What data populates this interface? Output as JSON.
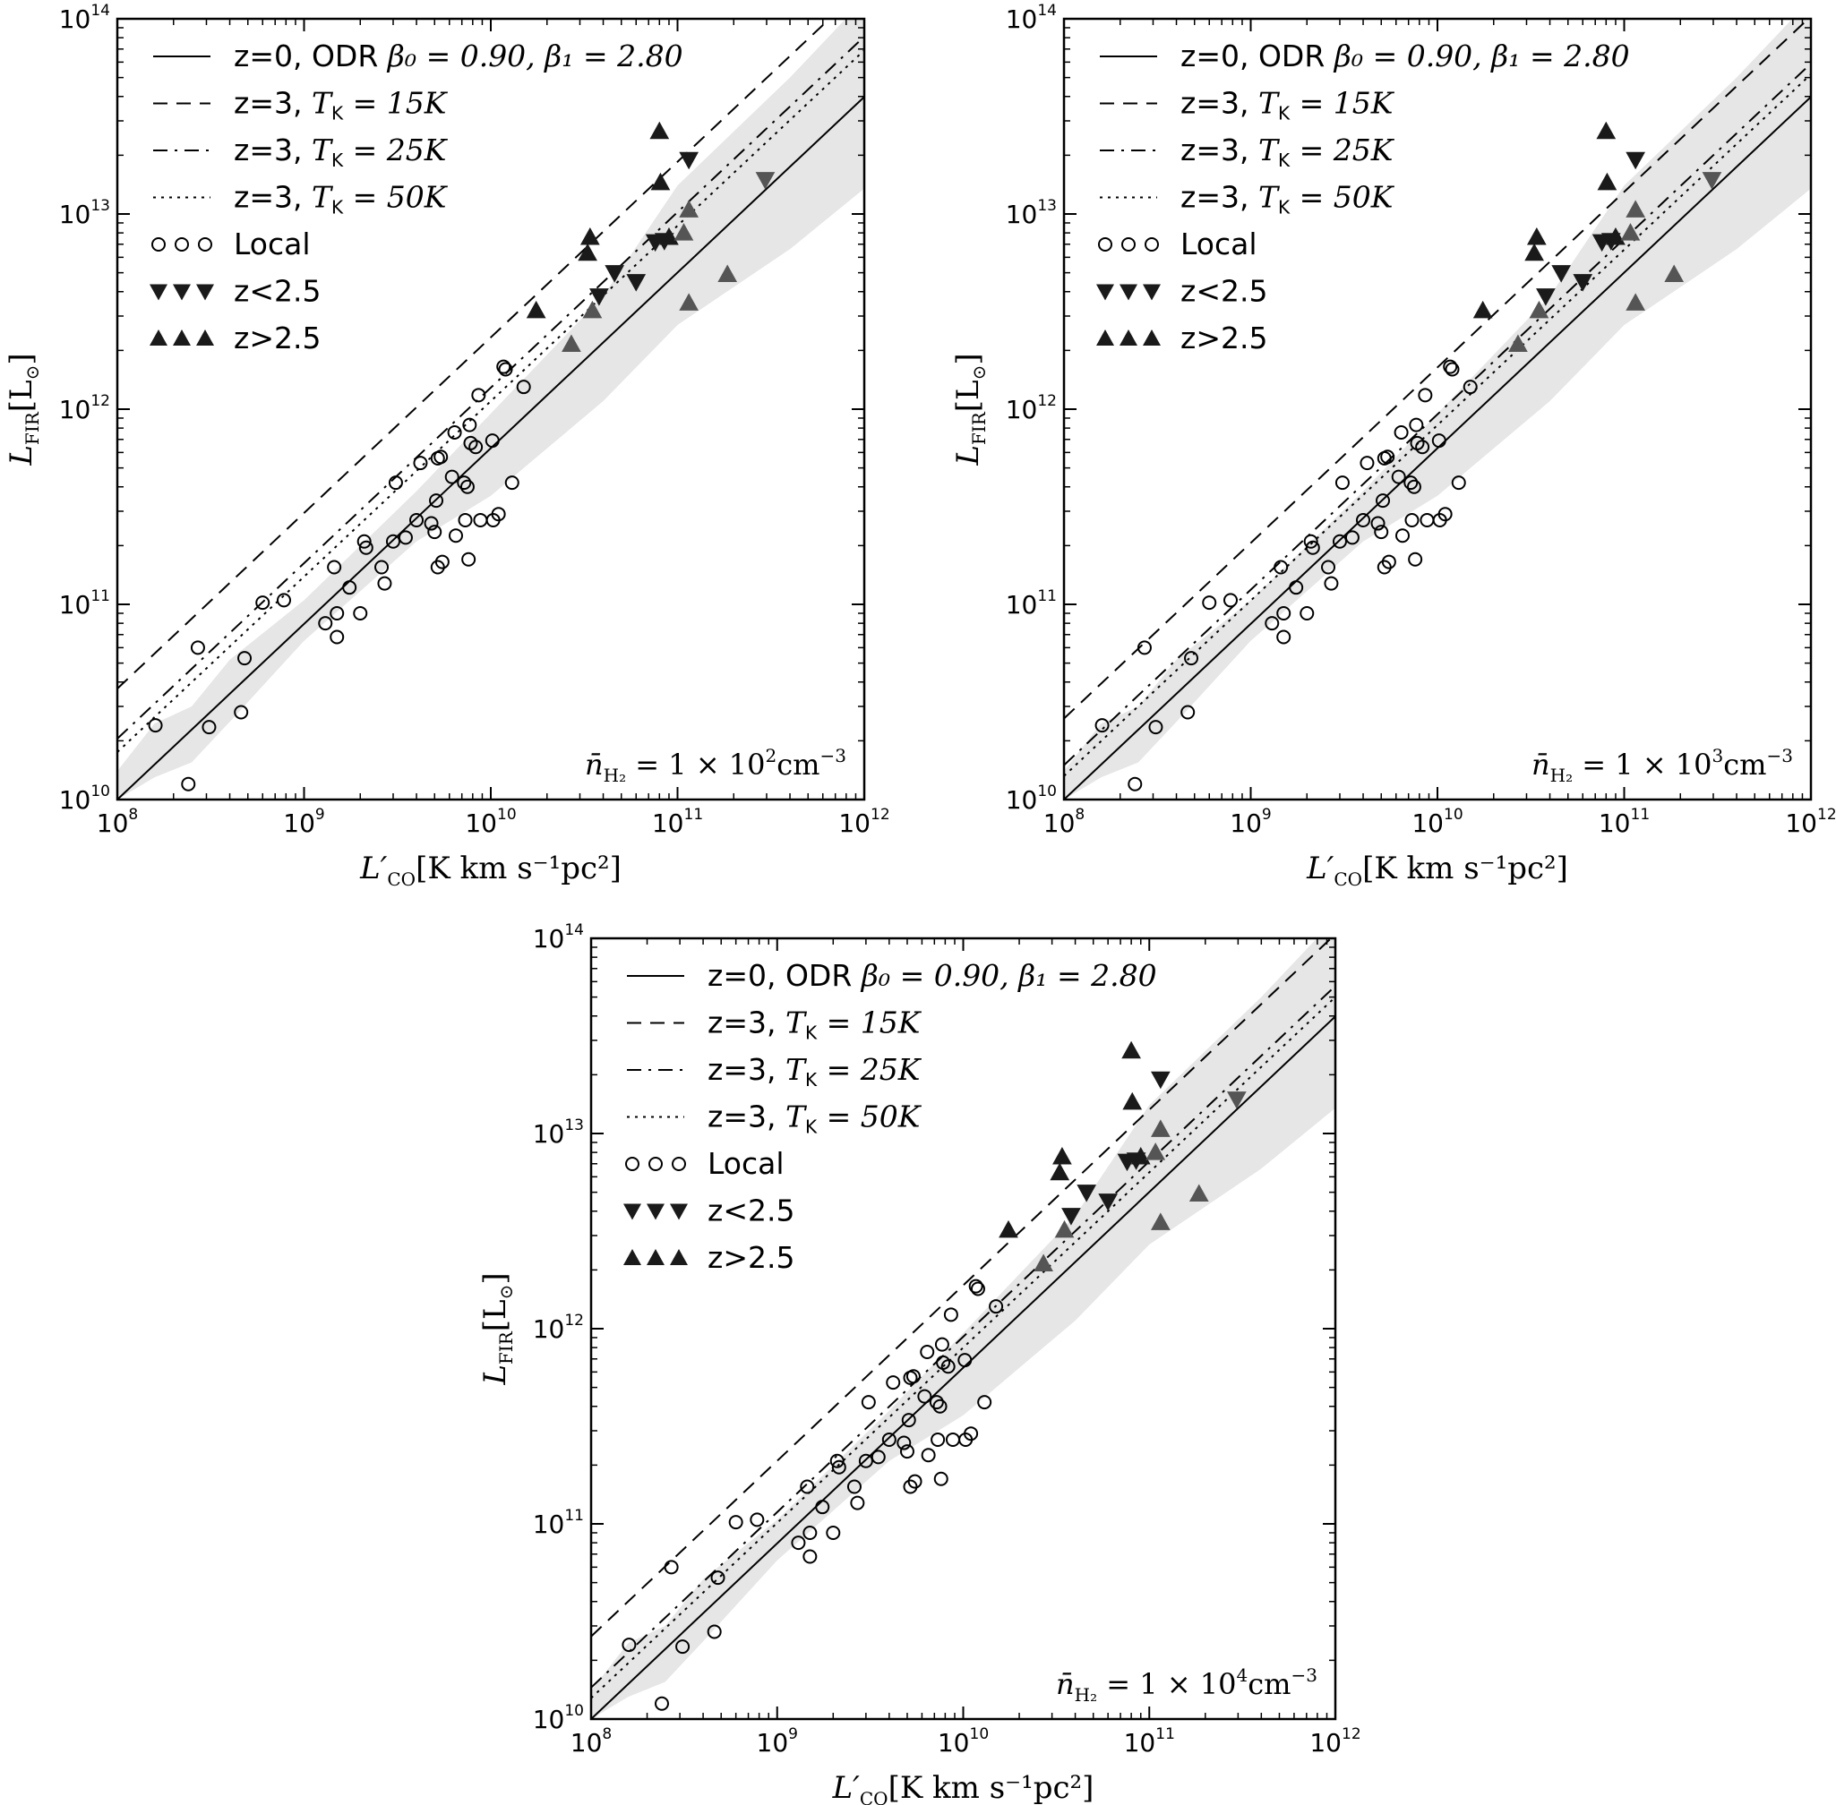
{
  "chart_data": [
    {
      "type": "scatter",
      "x_axis_label": {
        "main": "L",
        "prime": "′",
        "sub": "CO",
        "units": "[K km s⁻¹pc²]"
      },
      "y_axis_label": {
        "main": "L",
        "sub": "FIR",
        "units": "[L",
        "units_sub": "⊙",
        "units_close": "]"
      },
      "x_ticks": [
        {
          "base": "10",
          "exp": "8"
        },
        {
          "base": "10",
          "exp": "9"
        },
        {
          "base": "10",
          "exp": "10"
        },
        {
          "base": "10",
          "exp": "11"
        },
        {
          "base": "10",
          "exp": "12"
        }
      ],
      "y_ticks": [
        {
          "base": "10",
          "exp": "10"
        },
        {
          "base": "10",
          "exp": "11"
        },
        {
          "base": "10",
          "exp": "12"
        },
        {
          "base": "10",
          "exp": "13"
        },
        {
          "base": "10",
          "exp": "14"
        }
      ],
      "x_scale": "log",
      "y_scale": "log",
      "xlim": [
        100000000.0,
        1000000000000.0
      ],
      "ylim": [
        10000000000.0,
        100000000000000.0
      ],
      "grid": false,
      "legend_position": "top-left",
      "legend": [
        {
          "style": "solid",
          "text": "z=0, ODR ",
          "math": "β₀ = 0.90, β₁ = 2.80"
        },
        {
          "style": "dashed",
          "text": "z=3, ",
          "math": "T",
          "math_sub": "K",
          "math_tail": " = 15K"
        },
        {
          "style": "dashdot",
          "text": "z=3, ",
          "math": "T",
          "math_sub": "K",
          "math_tail": " = 25K"
        },
        {
          "style": "dotted",
          "text": "z=3, ",
          "math": "T",
          "math_sub": "K",
          "math_tail": " = 50K"
        },
        {
          "style": "marker-circle",
          "text": "Local"
        },
        {
          "style": "marker-down",
          "text": "z<2.5"
        },
        {
          "style": "marker-up",
          "text": "z>2.5"
        }
      ],
      "annotation": {
        "prefix": "n̄",
        "sub": "H₂",
        "text": " = 1 × 10",
        "exp": "2",
        "unit": "cm",
        "unit_exp": "−3"
      },
      "colors": {
        "shade": "#e6e6e6",
        "marker_dark": "#1a1a1a",
        "marker_grey": "#555555"
      },
      "series": [
        {
          "name": "z=0, ODR β0=0.90, β1=2.80",
          "kind": "line",
          "style": "solid",
          "x": [
            100000000.0,
            1000000000000.0
          ],
          "y": [
            10000000000.0,
            39800000000000.0
          ]
        },
        {
          "name": "z=3, TK=15K",
          "kind": "line",
          "style": "dashed",
          "x": [
            100000000.0,
            1000000000000.0
          ],
          "y": [
            37000000000.0,
            147000000000000.0
          ]
        },
        {
          "name": "z=3, TK=25K",
          "kind": "line",
          "style": "dashdot",
          "x": [
            100000000.0,
            1000000000000.0
          ],
          "y": [
            20500000000.0,
            81000000000000.0
          ]
        },
        {
          "name": "z=3, TK=50K",
          "kind": "line",
          "style": "dotted",
          "x": [
            100000000.0,
            1000000000000.0
          ],
          "y": [
            17500000000.0,
            69000000000000.0
          ]
        },
        {
          "name": "uncertainty band",
          "kind": "band",
          "x": [
            100000000.0,
            158000000.0,
            250000000.0,
            400000000.0,
            1000000000.0,
            4000000000.0,
            10000000000.0,
            40000000000.0,
            100000000000.0,
            400000000000.0,
            1000000000000.0
          ],
          "ylow": [
            10000000000.0,
            13000000000.0,
            15500000000.0,
            25000000000.0,
            65000000000.0,
            210000000000.0,
            360000000000.0,
            1100000000000.0,
            2700000000000.0,
            6600000000000.0,
            13500000000000.0
          ],
          "yhigh": [
            14000000000.0,
            24500000000.0,
            30000000000.0,
            52000000000.0,
            105000000000.0,
            380000000000.0,
            950000000000.0,
            3800000000000.0,
            14000000000000.0,
            50000000000000.0,
            126000000000000.0
          ]
        }
      ]
    },
    {
      "type": "scatter",
      "x_axis_label": {
        "main": "L",
        "prime": "′",
        "sub": "CO",
        "units": "[K km s⁻¹pc²]"
      },
      "y_axis_label": {
        "main": "L",
        "sub": "FIR",
        "units": "[L",
        "units_sub": "⊙",
        "units_close": "]"
      },
      "x_ticks": [
        {
          "base": "10",
          "exp": "8"
        },
        {
          "base": "10",
          "exp": "9"
        },
        {
          "base": "10",
          "exp": "10"
        },
        {
          "base": "10",
          "exp": "11"
        },
        {
          "base": "10",
          "exp": "12"
        }
      ],
      "y_ticks": [
        {
          "base": "10",
          "exp": "10"
        },
        {
          "base": "10",
          "exp": "11"
        },
        {
          "base": "10",
          "exp": "12"
        },
        {
          "base": "10",
          "exp": "13"
        },
        {
          "base": "10",
          "exp": "14"
        }
      ],
      "x_scale": "log",
      "y_scale": "log",
      "xlim": [
        100000000.0,
        1000000000000.0
      ],
      "ylim": [
        10000000000.0,
        100000000000000.0
      ],
      "grid": false,
      "legend_position": "top-left",
      "legend": [
        {
          "style": "solid",
          "text": "z=0, ODR ",
          "math": "β₀ = 0.90, β₁ = 2.80"
        },
        {
          "style": "dashed",
          "text": "z=3, ",
          "math": "T",
          "math_sub": "K",
          "math_tail": " = 15K"
        },
        {
          "style": "dashdot",
          "text": "z=3, ",
          "math": "T",
          "math_sub": "K",
          "math_tail": " = 25K"
        },
        {
          "style": "dotted",
          "text": "z=3, ",
          "math": "T",
          "math_sub": "K",
          "math_tail": " = 50K"
        },
        {
          "style": "marker-circle",
          "text": "Local"
        },
        {
          "style": "marker-down",
          "text": "z<2.5"
        },
        {
          "style": "marker-up",
          "text": "z>2.5"
        }
      ],
      "annotation": {
        "prefix": "n̄",
        "sub": "H₂",
        "text": " = 1 × 10",
        "exp": "3",
        "unit": "cm",
        "unit_exp": "−3"
      },
      "colors": {
        "shade": "#e6e6e6",
        "marker_dark": "#1a1a1a",
        "marker_grey": "#555555"
      },
      "series": [
        {
          "name": "z=0, ODR β0=0.90, β1=2.80",
          "kind": "line",
          "style": "solid",
          "x": [
            100000000.0,
            1000000000000.0
          ],
          "y": [
            10000000000.0,
            39800000000000.0
          ]
        },
        {
          "name": "z=3, TK=15K",
          "kind": "line",
          "style": "dashed",
          "x": [
            100000000.0,
            1000000000000.0
          ],
          "y": [
            26000000000.0,
            103000000000000.0
          ]
        },
        {
          "name": "z=3, TK=25K",
          "kind": "line",
          "style": "dashdot",
          "x": [
            100000000.0,
            1000000000000.0
          ],
          "y": [
            15000000000.0,
            59000000000000.0
          ]
        },
        {
          "name": "z=3, TK=50K",
          "kind": "line",
          "style": "dotted",
          "x": [
            100000000.0,
            1000000000000.0
          ],
          "y": [
            13200000000.0,
            52000000000000.0
          ]
        },
        {
          "name": "uncertainty band",
          "kind": "band",
          "x": [
            100000000.0,
            158000000.0,
            250000000.0,
            400000000.0,
            1000000000.0,
            4000000000.0,
            10000000000.0,
            40000000000.0,
            100000000000.0,
            400000000000.0,
            1000000000000.0
          ],
          "ylow": [
            10000000000.0,
            13000000000.0,
            15500000000.0,
            25000000000.0,
            65000000000.0,
            210000000000.0,
            360000000000.0,
            1100000000000.0,
            2700000000000.0,
            6600000000000.0,
            13500000000000.0
          ],
          "yhigh": [
            14000000000.0,
            24500000000.0,
            30000000000.0,
            52000000000.0,
            105000000000.0,
            380000000000.0,
            950000000000.0,
            3800000000000.0,
            14000000000000.0,
            50000000000000.0,
            126000000000000.0
          ]
        }
      ]
    },
    {
      "type": "scatter",
      "x_axis_label": {
        "main": "L",
        "prime": "′",
        "sub": "CO",
        "units": "[K km s⁻¹pc²]"
      },
      "y_axis_label": {
        "main": "L",
        "sub": "FIR",
        "units": "[L",
        "units_sub": "⊙",
        "units_close": "]"
      },
      "x_ticks": [
        {
          "base": "10",
          "exp": "8"
        },
        {
          "base": "10",
          "exp": "9"
        },
        {
          "base": "10",
          "exp": "10"
        },
        {
          "base": "10",
          "exp": "11"
        },
        {
          "base": "10",
          "exp": "12"
        }
      ],
      "y_ticks": [
        {
          "base": "10",
          "exp": "10"
        },
        {
          "base": "10",
          "exp": "11"
        },
        {
          "base": "10",
          "exp": "12"
        },
        {
          "base": "10",
          "exp": "13"
        },
        {
          "base": "10",
          "exp": "14"
        }
      ],
      "x_scale": "log",
      "y_scale": "log",
      "xlim": [
        100000000.0,
        1000000000000.0
      ],
      "ylim": [
        10000000000.0,
        100000000000000.0
      ],
      "grid": false,
      "legend_position": "top-left",
      "legend": [
        {
          "style": "solid",
          "text": "z=0, ODR ",
          "math": "β₀ = 0.90, β₁ = 2.80"
        },
        {
          "style": "dashed",
          "text": "z=3, ",
          "math": "T",
          "math_sub": "K",
          "math_tail": " = 15K"
        },
        {
          "style": "dashdot",
          "text": "z=3, ",
          "math": "T",
          "math_sub": "K",
          "math_tail": " = 25K"
        },
        {
          "style": "dotted",
          "text": "z=3, ",
          "math": "T",
          "math_sub": "K",
          "math_tail": " = 50K"
        },
        {
          "style": "marker-circle",
          "text": "Local"
        },
        {
          "style": "marker-down",
          "text": "z<2.5"
        },
        {
          "style": "marker-up",
          "text": "z>2.5"
        }
      ],
      "annotation": {
        "prefix": "n̄",
        "sub": "H₂",
        "text": " = 1 × 10",
        "exp": "4",
        "unit": "cm",
        "unit_exp": "−3"
      },
      "colors": {
        "shade": "#e6e6e6",
        "marker_dark": "#1a1a1a",
        "marker_grey": "#555555"
      },
      "series": [
        {
          "name": "z=0, ODR β0=0.90, β1=2.80",
          "kind": "line",
          "style": "solid",
          "x": [
            100000000.0,
            1000000000000.0
          ],
          "y": [
            10000000000.0,
            39800000000000.0
          ]
        },
        {
          "name": "z=3, TK=15K",
          "kind": "line",
          "style": "dashed",
          "x": [
            100000000.0,
            1000000000000.0
          ],
          "y": [
            26500000000.0,
            105000000000000.0
          ]
        },
        {
          "name": "z=3, TK=25K",
          "kind": "line",
          "style": "dashdot",
          "x": [
            100000000.0,
            1000000000000.0
          ],
          "y": [
            14500000000.0,
            57000000000000.0
          ]
        },
        {
          "name": "z=3, TK=50K",
          "kind": "line",
          "style": "dotted",
          "x": [
            100000000.0,
            1000000000000.0
          ],
          "y": [
            12800000000.0,
            50000000000000.0
          ]
        },
        {
          "name": "uncertainty band",
          "kind": "band",
          "x": [
            100000000.0,
            158000000.0,
            250000000.0,
            400000000.0,
            1000000000.0,
            4000000000.0,
            10000000000.0,
            40000000000.0,
            100000000000.0,
            400000000000.0,
            1000000000000.0
          ],
          "ylow": [
            10000000000.0,
            13000000000.0,
            15500000000.0,
            25000000000.0,
            65000000000.0,
            210000000000.0,
            360000000000.0,
            1100000000000.0,
            2700000000000.0,
            6600000000000.0,
            13500000000000.0
          ],
          "yhigh": [
            14000000000.0,
            24500000000.0,
            30000000000.0,
            52000000000.0,
            105000000000.0,
            380000000000.0,
            950000000000.0,
            3800000000000.0,
            14000000000000.0,
            50000000000000.0,
            126000000000000.0
          ]
        }
      ]
    }
  ],
  "points": {
    "local": [
      [
        160000000.0,
        24000000000.0
      ],
      [
        240000000.0,
        12000000000.0
      ],
      [
        270000000.0,
        60000000000.0
      ],
      [
        310000000.0,
        23500000000.0
      ],
      [
        460000000.0,
        28000000000.0
      ],
      [
        480000000.0,
        53000000000.0
      ],
      [
        600000000.0,
        102000000000.0
      ],
      [
        780000000.0,
        105000000000.0
      ],
      [
        1300000000.0,
        80000000000.0
      ],
      [
        1450000000.0,
        155000000000.0
      ],
      [
        1500000000.0,
        90000000000.0
      ],
      [
        1500000000.0,
        68000000000.0
      ],
      [
        1750000000.0,
        122000000000.0
      ],
      [
        2000000000.0,
        90000000000.0
      ],
      [
        2100000000.0,
        210000000000.0
      ],
      [
        2150000000.0,
        195000000000.0
      ],
      [
        2600000000.0,
        155000000000.0
      ],
      [
        2700000000.0,
        128000000000.0
      ],
      [
        3000000000.0,
        210000000000.0
      ],
      [
        3100000000.0,
        420000000000.0
      ],
      [
        3500000000.0,
        220000000000.0
      ],
      [
        4000000000.0,
        270000000000.0
      ],
      [
        4200000000.0,
        530000000000.0
      ],
      [
        4800000000.0,
        260000000000.0
      ],
      [
        5000000000.0,
        235000000000.0
      ],
      [
        5100000000.0,
        340000000000.0
      ],
      [
        5200000000.0,
        560000000000.0
      ],
      [
        5200000000.0,
        155000000000.0
      ],
      [
        5400000000.0,
        570000000000.0
      ],
      [
        5500000000.0,
        165000000000.0
      ],
      [
        6200000000.0,
        450000000000.0
      ],
      [
        6400000000.0,
        760000000000.0
      ],
      [
        6500000000.0,
        225000000000.0
      ],
      [
        7200000000.0,
        420000000000.0
      ],
      [
        7300000000.0,
        270000000000.0
      ],
      [
        7500000000.0,
        400000000000.0
      ],
      [
        7600000000.0,
        170000000000.0
      ],
      [
        7700000000.0,
        830000000000.0
      ],
      [
        7800000000.0,
        670000000000.0
      ],
      [
        8300000000.0,
        640000000000.0
      ],
      [
        8600000000.0,
        1180000000000.0
      ],
      [
        8800000000.0,
        270000000000.0
      ],
      [
        10200000000.0,
        690000000000.0
      ],
      [
        10300000000.0,
        270000000000.0
      ],
      [
        11000000000.0,
        290000000000.0
      ],
      [
        11700000000.0,
        1650000000000.0
      ],
      [
        12000000000.0,
        1600000000000.0
      ],
      [
        13000000000.0,
        420000000000.0
      ],
      [
        15000000000.0,
        1300000000000.0
      ]
    ],
    "z_lt_2_5": [
      [
        38000000000.0,
        3800000000000.0
      ],
      [
        46000000000.0,
        5000000000000.0
      ],
      [
        60000000000.0,
        4500000000000.0
      ],
      [
        76000000000.0,
        7200000000000.0
      ],
      [
        85000000000.0,
        7300000000000.0
      ],
      [
        115000000000.0,
        19000000000000.0
      ]
    ],
    "z_lt_2_5_grey": [
      [
        295000000000.0,
        15000000000000.0
      ]
    ],
    "z_gt_2_5": [
      [
        17500000000.0,
        3200000000000.0
      ],
      [
        33000000000.0,
        6300000000000.0
      ],
      [
        34000000000.0,
        7600000000000.0
      ],
      [
        80000000000.0,
        26500000000000.0
      ],
      [
        81000000000.0,
        14500000000000.0
      ],
      [
        90000000000.0,
        7600000000000.0
      ]
    ],
    "z_gt_2_5_grey": [
      [
        27000000000.0,
        2150000000000.0
      ],
      [
        35000000000.0,
        3200000000000.0
      ],
      [
        108000000000.0,
        8000000000000.0
      ],
      [
        115000000000.0,
        3500000000000.0
      ],
      [
        115000000000.0,
        10500000000000.0
      ],
      [
        185000000000.0,
        4900000000000.0
      ]
    ]
  }
}
